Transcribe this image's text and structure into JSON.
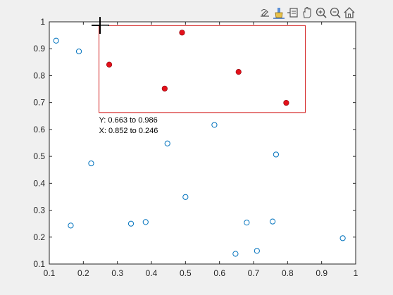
{
  "toolbar": {
    "icons": [
      "edit-plot-icon",
      "brush-icon",
      "data-tips-icon",
      "pan-hand-icon",
      "zoom-in-icon",
      "zoom-out-icon",
      "home-restore-icon"
    ]
  },
  "brush": {
    "y_label": "Y: 0.663 to 0.986",
    "x_label": "X: 0.852 to 0.246",
    "x_range": [
      0.246,
      0.852
    ],
    "y_range": [
      0.663,
      0.986
    ]
  },
  "colors": {
    "axes_background": "#ffffff",
    "figure_background": "#f0f0f0",
    "marker_unselected": "#0072bd",
    "marker_selected": "#e3101a",
    "brush_box": "#d42020",
    "axis_color": "#262626"
  },
  "chart_data": {
    "type": "scatter",
    "xlim": [
      0.1,
      1
    ],
    "ylim": [
      0.1,
      1
    ],
    "xticks": [
      "0.1",
      "0.2",
      "0.3",
      "0.4",
      "0.5",
      "0.6",
      "0.7",
      "0.8",
      "0.9",
      "1"
    ],
    "yticks": [
      "0.1",
      "0.2",
      "0.3",
      "0.4",
      "0.5",
      "0.6",
      "0.7",
      "0.8",
      "0.9",
      "1"
    ],
    "xtick_values": [
      0.1,
      0.2,
      0.3,
      0.4,
      0.5,
      0.6,
      0.7,
      0.8,
      0.9,
      1
    ],
    "ytick_values": [
      0.1,
      0.2,
      0.3,
      0.4,
      0.5,
      0.6,
      0.7,
      0.8,
      0.9,
      1
    ],
    "grid": false,
    "points": [
      {
        "x": 0.12,
        "y": 0.93,
        "selected": false
      },
      {
        "x": 0.187,
        "y": 0.89,
        "selected": false
      },
      {
        "x": 0.223,
        "y": 0.474,
        "selected": false
      },
      {
        "x": 0.163,
        "y": 0.243,
        "selected": false
      },
      {
        "x": 0.34,
        "y": 0.25,
        "selected": false
      },
      {
        "x": 0.383,
        "y": 0.256,
        "selected": false
      },
      {
        "x": 0.447,
        "y": 0.548,
        "selected": false
      },
      {
        "x": 0.5,
        "y": 0.349,
        "selected": false
      },
      {
        "x": 0.585,
        "y": 0.617,
        "selected": false
      },
      {
        "x": 0.647,
        "y": 0.138,
        "selected": false
      },
      {
        "x": 0.68,
        "y": 0.254,
        "selected": false
      },
      {
        "x": 0.71,
        "y": 0.149,
        "selected": false
      },
      {
        "x": 0.756,
        "y": 0.258,
        "selected": false
      },
      {
        "x": 0.766,
        "y": 0.507,
        "selected": false
      },
      {
        "x": 0.962,
        "y": 0.196,
        "selected": false
      },
      {
        "x": 0.276,
        "y": 0.841,
        "selected": true
      },
      {
        "x": 0.49,
        "y": 0.96,
        "selected": true
      },
      {
        "x": 0.439,
        "y": 0.752,
        "selected": true
      },
      {
        "x": 0.656,
        "y": 0.814,
        "selected": true
      },
      {
        "x": 0.796,
        "y": 0.699,
        "selected": true
      }
    ]
  }
}
